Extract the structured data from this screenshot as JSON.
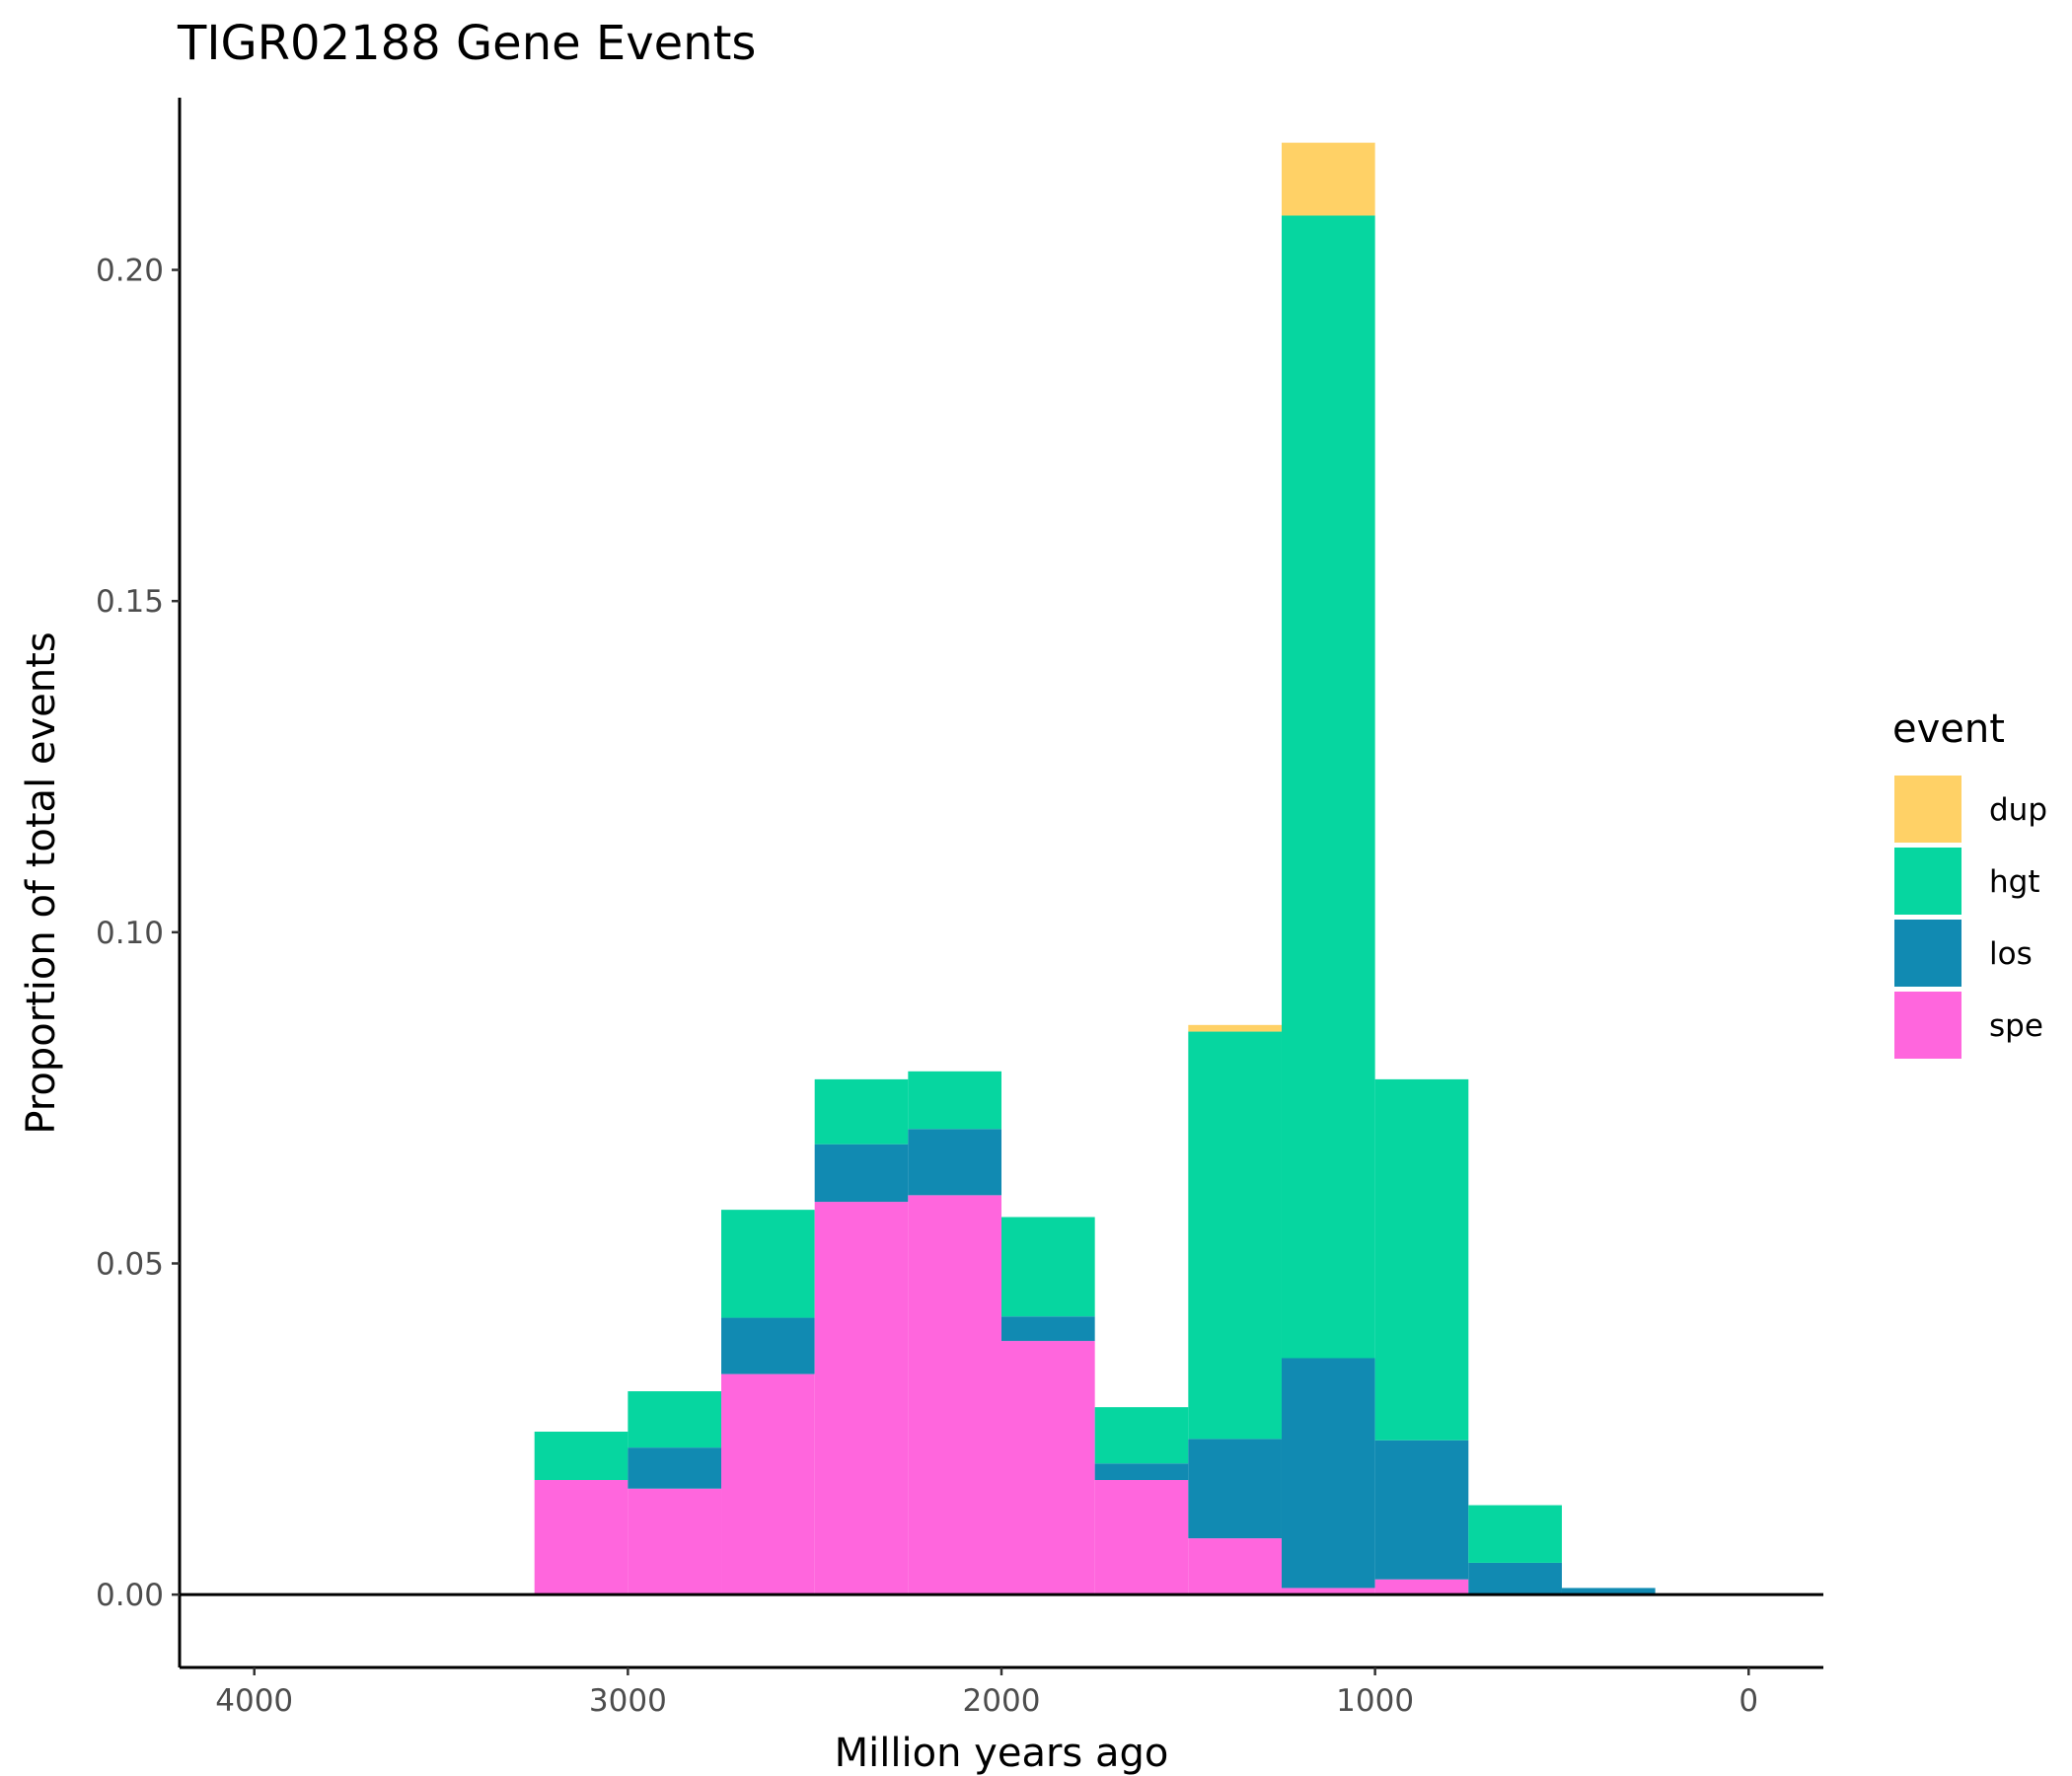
{
  "chart_data": {
    "type": "bar",
    "stacked": true,
    "title": "TIGR02188 Gene Events",
    "xlabel": "Million years ago",
    "ylabel": "Proportion of total events",
    "x_reversed": true,
    "xlim": [
      4200,
      -200
    ],
    "ylim": [
      -0.011,
      0.226
    ],
    "x_ticks": [
      4000,
      3000,
      2000,
      1000,
      0
    ],
    "x_tick_labels": [
      "4000",
      "3000",
      "2000",
      "1000",
      "0"
    ],
    "y_ticks": [
      0.0,
      0.05,
      0.1,
      0.15,
      0.2
    ],
    "y_tick_labels": [
      "0.00",
      "0.05",
      "0.10",
      "0.15",
      "0.20"
    ],
    "bin_width": 250,
    "bins": [
      [
        3250,
        3000
      ],
      [
        3000,
        2750
      ],
      [
        2750,
        2500
      ],
      [
        2500,
        2250
      ],
      [
        2250,
        2000
      ],
      [
        2000,
        1750
      ],
      [
        1750,
        1500
      ],
      [
        1500,
        1250
      ],
      [
        1250,
        1000
      ],
      [
        1000,
        750
      ],
      [
        750,
        500
      ],
      [
        500,
        250
      ]
    ],
    "series": [
      {
        "name": "spe",
        "color": "#FF66DD",
        "values": [
          0.0173,
          0.016,
          0.0333,
          0.0593,
          0.0603,
          0.0383,
          0.0173,
          0.0085,
          0.001,
          0.0023,
          0.0,
          0.0
        ]
      },
      {
        "name": "los",
        "color": "#118AB2",
        "values": [
          0.0,
          0.0062,
          0.0085,
          0.0087,
          0.01,
          0.0037,
          0.0025,
          0.015,
          0.0347,
          0.021,
          0.0048,
          0.001
        ]
      },
      {
        "name": "hgt",
        "color": "#06D6A0",
        "values": [
          0.0073,
          0.0085,
          0.0163,
          0.0098,
          0.0087,
          0.015,
          0.0085,
          0.0615,
          0.1725,
          0.0545,
          0.0087,
          0.0
        ]
      },
      {
        "name": "dup",
        "color": "#FFD166",
        "values": [
          0.0,
          0.0,
          0.0,
          0.0,
          0.0,
          0.0,
          0.0,
          0.001,
          0.011,
          0.0,
          0.0,
          0.0
        ]
      }
    ],
    "legend": {
      "title": "event",
      "position": "right",
      "order": [
        "dup",
        "hgt",
        "los",
        "spe"
      ]
    },
    "grid": false
  }
}
